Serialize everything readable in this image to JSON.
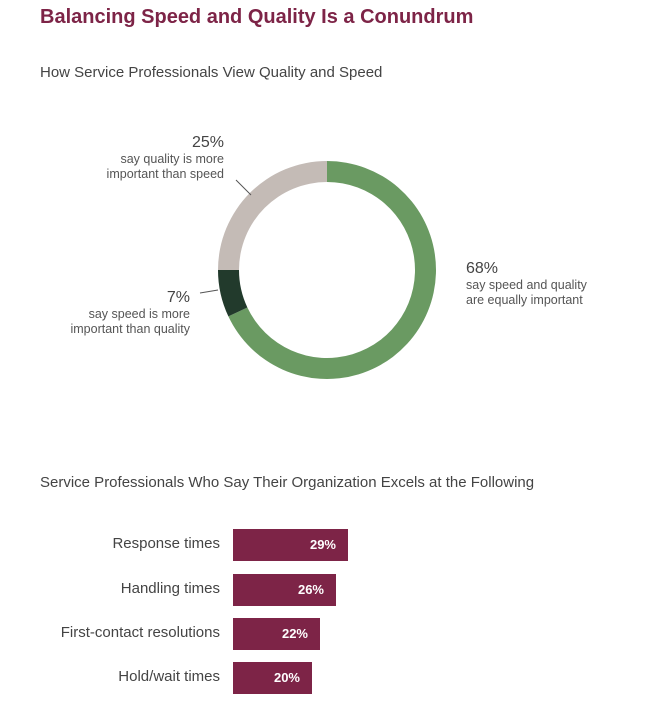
{
  "title": "Balancing Speed and Quality Is a Conundrum",
  "colors": {
    "title": "#7d2447",
    "bar": "#7d2447",
    "donut_equal": "#6a9a62",
    "donut_speed": "#223a2c",
    "donut_quality": "#c4bbb6"
  },
  "chart_data": [
    {
      "type": "pie",
      "title": "How Service Professionals View Quality and Speed",
      "slices": [
        {
          "label_pct": "68%",
          "value": 68,
          "label": "say speed and quality are equally important",
          "color": "#6a9a62"
        },
        {
          "label_pct": "7%",
          "value": 7,
          "label": "say speed is more important than quality",
          "color": "#223a2c"
        },
        {
          "label_pct": "25%",
          "value": 25,
          "label": "say quality is more important than speed",
          "color": "#c4bbb6"
        }
      ]
    },
    {
      "type": "bar",
      "orientation": "horizontal",
      "title": "Service Professionals Who Say Their Organization Excels at the Following",
      "categories": [
        "Response times",
        "Handling times",
        "First-contact resolutions",
        "Hold/wait times"
      ],
      "values": [
        29,
        26,
        22,
        20
      ],
      "value_labels": [
        "29%",
        "26%",
        "22%",
        "20%"
      ],
      "color": "#7d2447"
    }
  ],
  "callouts": {
    "quality": {
      "pct": "25%",
      "line1": "say quality is more",
      "line2": "important than speed"
    },
    "speed": {
      "pct": "7%",
      "line1": "say speed is more",
      "line2": "important than quality"
    },
    "equal": {
      "pct": "68%",
      "line1": "say speed and quality",
      "line2": "are equally important"
    }
  }
}
